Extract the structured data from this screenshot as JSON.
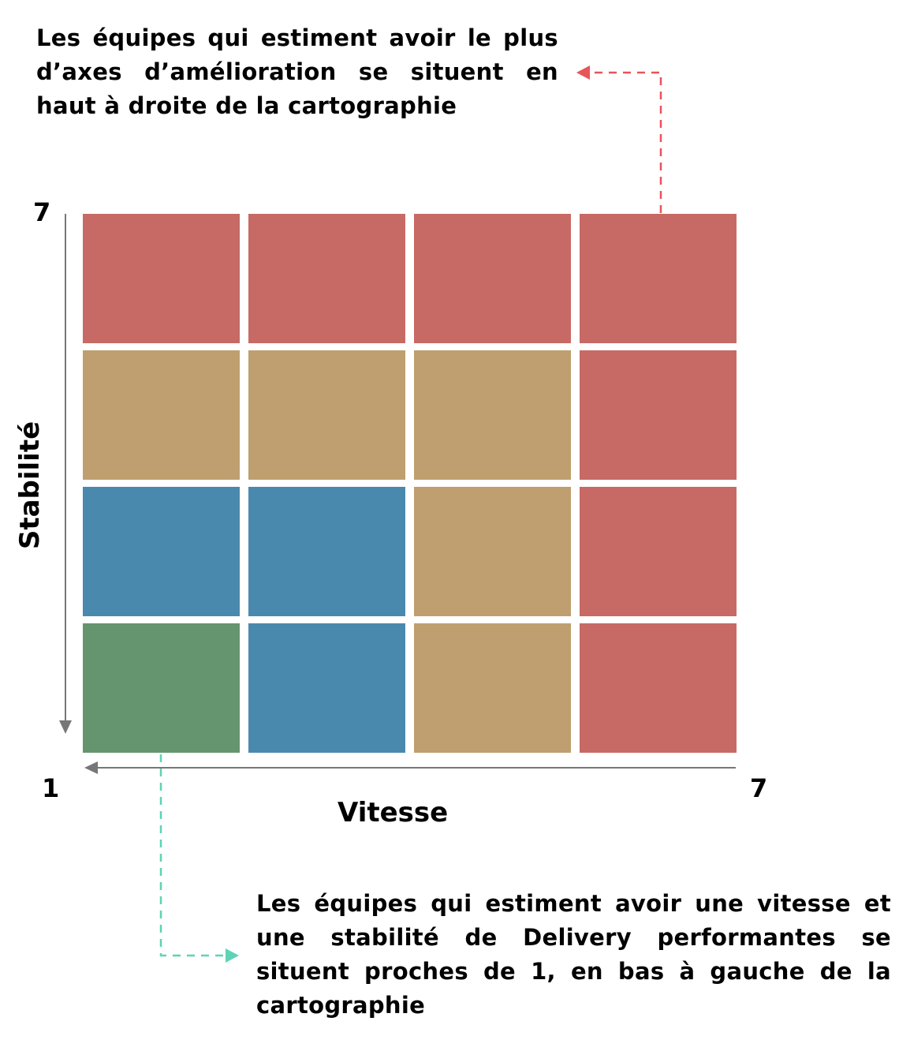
{
  "notes": {
    "top": "Les équipes qui estiment avoir le plus d’axes d’amélioration se situent en haut à droite de la cartographie",
    "bottom": "Les équipes qui estiment avoir une vitesse et une stabilité de Delivery performantes se situent proches de 1, en bas à gauche de la cartographie"
  },
  "axes": {
    "x_label": "Vitesse",
    "y_label": "Stabilité",
    "y_max": "7",
    "origin": "1",
    "x_max": "7"
  },
  "colors": {
    "red": "#C76A65",
    "tan": "#BF9F6F",
    "blue": "#4A89AE",
    "green": "#64956F",
    "top_arrow": "#E8545A",
    "bottom_arrow": "#5ED3B5",
    "axis": "#777777"
  },
  "grid": [
    [
      "red",
      "red",
      "red",
      "red"
    ],
    [
      "tan",
      "tan",
      "tan",
      "red"
    ],
    [
      "blue",
      "blue",
      "tan",
      "red"
    ],
    [
      "green",
      "blue",
      "tan",
      "red"
    ]
  ]
}
